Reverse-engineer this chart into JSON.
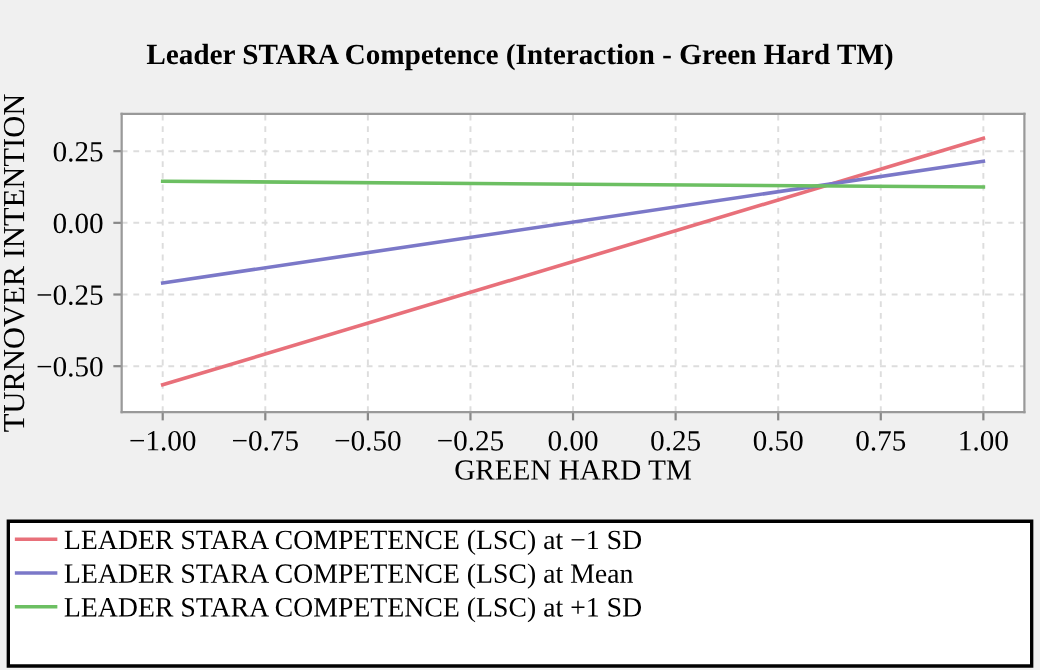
{
  "chart_data": {
    "type": "line",
    "title": "Leader STARA Competence (Interaction - Green Hard TM)",
    "xlabel": "GREEN HARD TM",
    "ylabel": "TURNOVER INTENTION",
    "x": [
      -1.0,
      1.0
    ],
    "series": [
      {
        "name": "LEADER STARA COMPETENCE (LSC) at −1 SD",
        "color": "#e8707a",
        "values": [
          -0.565,
          0.295
        ]
      },
      {
        "name": "LEADER STARA COMPETENCE (LSC) at Mean",
        "color": "#7b78c8",
        "values": [
          -0.21,
          0.215
        ]
      },
      {
        "name": "LEADER STARA COMPETENCE (LSC) at +1 SD",
        "color": "#6cbf62",
        "values": [
          0.145,
          0.125
        ]
      }
    ],
    "xlim": [
      -1.1,
      1.1
    ],
    "xticks": [
      {
        "value": -1.0,
        "label": "−1.00"
      },
      {
        "value": -0.75,
        "label": "−0.75"
      },
      {
        "value": -0.5,
        "label": "−0.50"
      },
      {
        "value": -0.25,
        "label": "−0.25"
      },
      {
        "value": 0.0,
        "label": "0.00"
      },
      {
        "value": 0.25,
        "label": "0.25"
      },
      {
        "value": 0.5,
        "label": "0.50"
      },
      {
        "value": 0.75,
        "label": "0.75"
      },
      {
        "value": 1.0,
        "label": "1.00"
      }
    ],
    "ylim": [
      -0.66,
      0.38
    ],
    "yticks": [
      {
        "value": -0.5,
        "label": "−0.50"
      },
      {
        "value": -0.25,
        "label": "−0.25"
      },
      {
        "value": 0.0,
        "label": "0.00"
      },
      {
        "value": 0.25,
        "label": "0.25"
      }
    ],
    "grid": true,
    "legend": "bottom",
    "line_style": "solid",
    "marker": "none"
  }
}
